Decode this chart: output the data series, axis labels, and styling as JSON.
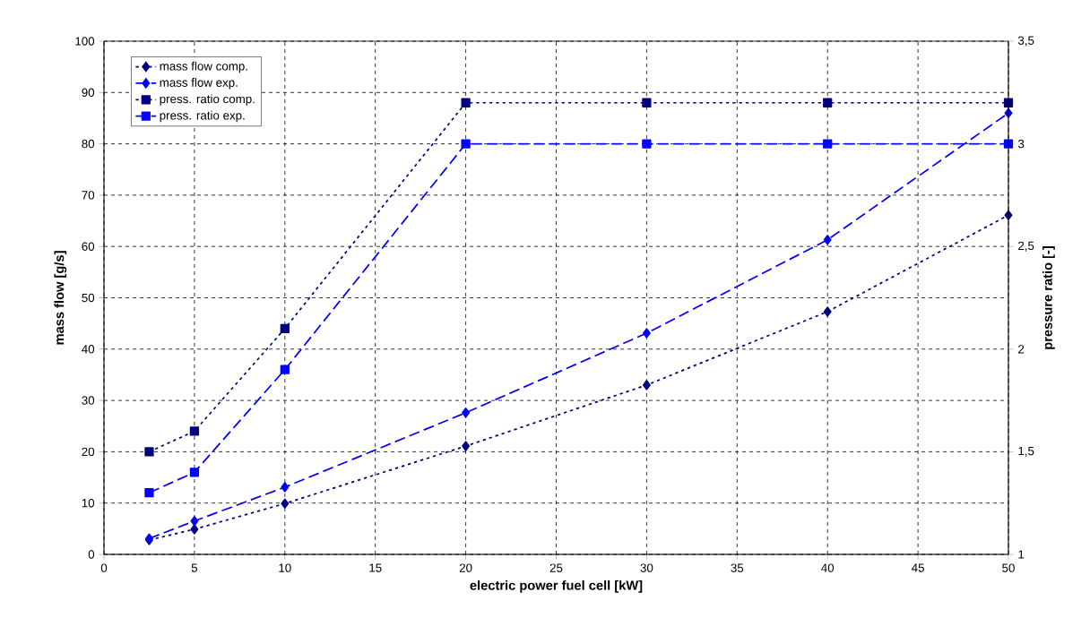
{
  "chart_data": {
    "type": "line",
    "xlabel": "electric power fuel cell [kW]",
    "ylabel": "mass flow [g/s]",
    "y2label": "pressure ratio [-]",
    "x": [
      2.5,
      5,
      10,
      20,
      30,
      40,
      50
    ],
    "series": [
      {
        "name": "mass flow comp.",
        "color": "#000080",
        "marker": "diamond",
        "line_style": "dotted",
        "values": [
          2.8,
          4.9,
          9.9,
          21.1,
          33,
          47.3,
          66.1
        ]
      },
      {
        "name": "mass flow exp.",
        "color": "#0000ff",
        "marker": "diamond",
        "line_style": "dashed",
        "values": [
          3.1,
          6.5,
          13.1,
          27.6,
          43.1,
          61.3,
          86
        ]
      },
      {
        "name": "press. ratio comp.",
        "color": "#000080",
        "marker": "square",
        "line_style": "dotted",
        "axis": "y2",
        "values": [
          1.5,
          1.6,
          2.1,
          3.2,
          3.2,
          3.2,
          3.2
        ]
      },
      {
        "name": "press. ratio exp.",
        "color": "#0000ff",
        "marker": "square",
        "line_style": "dashed",
        "axis": "y2",
        "values": [
          1.3,
          1.4,
          1.9,
          3.0,
          3.0,
          3.0,
          3.0
        ]
      }
    ],
    "xlim": [
      0,
      50
    ],
    "xticks": [
      0,
      5,
      10,
      15,
      20,
      25,
      30,
      35,
      40,
      45,
      50
    ],
    "ylim": [
      0,
      100
    ],
    "yticks": [
      0,
      10,
      20,
      30,
      40,
      50,
      60,
      70,
      80,
      90,
      100
    ],
    "y2lim": [
      1,
      3.5
    ],
    "y2ticks": [
      1,
      {
        "value": 1.5,
        "label": "1,5"
      },
      2,
      {
        "value": 2.5,
        "label": "2,5"
      },
      3,
      {
        "value": 3.5,
        "label": "3,5"
      }
    ],
    "grid": true,
    "legend": "top left"
  }
}
